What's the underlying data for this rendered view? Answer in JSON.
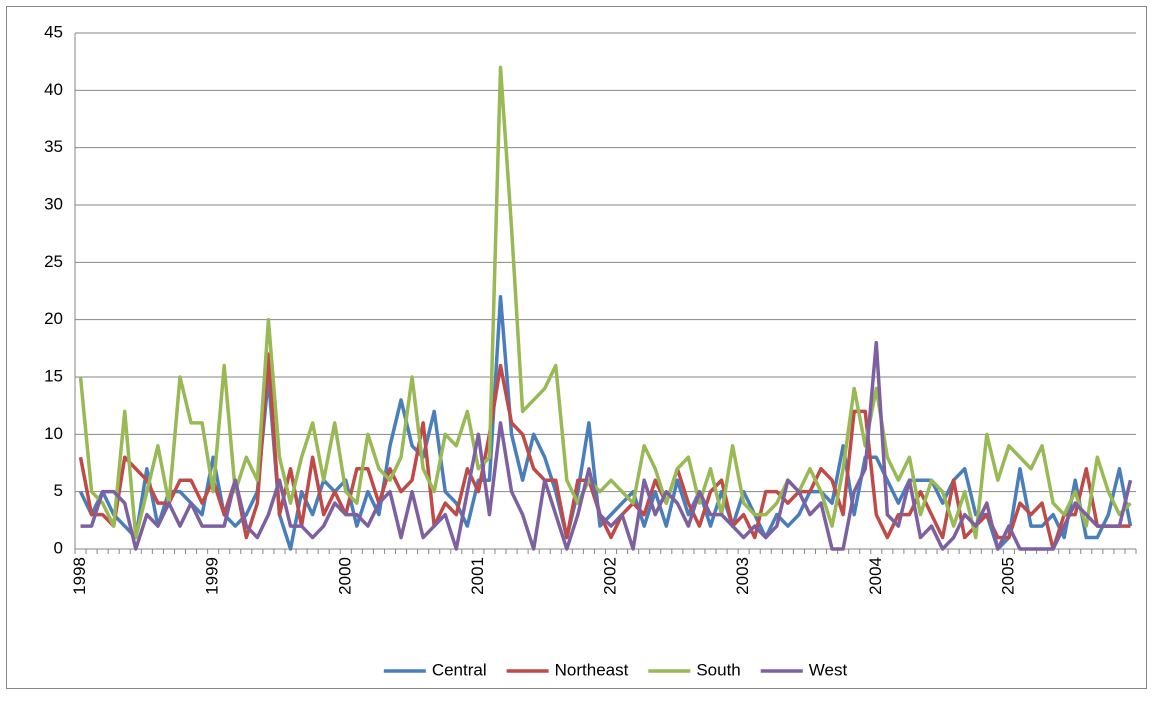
{
  "chart_data": {
    "type": "line",
    "categories": [
      "1998",
      null,
      null,
      null,
      null,
      null,
      null,
      null,
      null,
      null,
      null,
      null,
      "1999",
      null,
      null,
      null,
      null,
      null,
      null,
      null,
      null,
      null,
      null,
      null,
      "2000",
      null,
      null,
      null,
      null,
      null,
      null,
      null,
      null,
      null,
      null,
      null,
      "2001",
      null,
      null,
      null,
      null,
      null,
      null,
      null,
      null,
      null,
      null,
      null,
      "2002",
      null,
      null,
      null,
      null,
      null,
      null,
      null,
      null,
      null,
      null,
      null,
      "2003",
      null,
      null,
      null,
      null,
      null,
      null,
      null,
      null,
      null,
      null,
      null,
      "2004",
      null,
      null,
      null,
      null,
      null,
      null,
      null,
      null,
      null,
      null,
      null,
      "2005",
      null,
      null,
      null,
      null,
      null,
      null,
      null,
      null,
      null,
      null,
      null
    ],
    "series": [
      {
        "name": "Central",
        "color": "#4a7ebb",
        "values": [
          5,
          3,
          5,
          3,
          2,
          1,
          7,
          2,
          5,
          5,
          4,
          3,
          8,
          3,
          2,
          3,
          5,
          15,
          3,
          0,
          5,
          3,
          6,
          5,
          6,
          2,
          5,
          3,
          9,
          13,
          9,
          8,
          12,
          5,
          4,
          2,
          6,
          6,
          22,
          10,
          6,
          10,
          8,
          5,
          1,
          5,
          11,
          2,
          3,
          4,
          5,
          2,
          5,
          2,
          6,
          3,
          5,
          2,
          5,
          2,
          5,
          3,
          1,
          3,
          2,
          3,
          5,
          5,
          4,
          9,
          3,
          8,
          8,
          6,
          4,
          6,
          6,
          6,
          4,
          6,
          7,
          3,
          3,
          0,
          1,
          7,
          2,
          2,
          3,
          1,
          6,
          1,
          1,
          3,
          7,
          2
        ]
      },
      {
        "name": "Northeast",
        "color": "#be4b48",
        "values": [
          8,
          3,
          3,
          2,
          8,
          7,
          6,
          4,
          4,
          6,
          6,
          4,
          6,
          3,
          6,
          1,
          4,
          17,
          3,
          7,
          2,
          8,
          3,
          5,
          3,
          7,
          7,
          4,
          7,
          5,
          6,
          11,
          2,
          4,
          3,
          7,
          5,
          10,
          16,
          11,
          10,
          7,
          6,
          6,
          1,
          6,
          6,
          3,
          1,
          3,
          4,
          3,
          6,
          4,
          7,
          4,
          2,
          5,
          6,
          2,
          3,
          1,
          5,
          5,
          4,
          5,
          5,
          7,
          6,
          3,
          12,
          12,
          3,
          1,
          3,
          3,
          5,
          3,
          1,
          6,
          1,
          2,
          3,
          1,
          1,
          4,
          3,
          4,
          0,
          3,
          3,
          7,
          2,
          2,
          2,
          2
        ]
      },
      {
        "name": "South",
        "color": "#98b954",
        "values": [
          15,
          5,
          4,
          2,
          12,
          1,
          5,
          9,
          4,
          15,
          11,
          11,
          5,
          16,
          5,
          8,
          6,
          20,
          8,
          4,
          8,
          11,
          6,
          11,
          5,
          4,
          10,
          7,
          6,
          8,
          15,
          7,
          5,
          10,
          9,
          12,
          7,
          8,
          42,
          28,
          12,
          13,
          14,
          16,
          6,
          4,
          6,
          5,
          6,
          5,
          4,
          9,
          7,
          4,
          7,
          8,
          4,
          7,
          3,
          9,
          4,
          3,
          3,
          4,
          6,
          5,
          7,
          5,
          2,
          7,
          14,
          9,
          14,
          8,
          6,
          8,
          3,
          6,
          5,
          2,
          5,
          1,
          10,
          6,
          9,
          8,
          7,
          9,
          4,
          3,
          5,
          2,
          8,
          5,
          3,
          4
        ]
      },
      {
        "name": "West",
        "color": "#7d60a0",
        "values": [
          2,
          2,
          5,
          5,
          4,
          0,
          3,
          2,
          4,
          2,
          4,
          2,
          2,
          2,
          6,
          2,
          1,
          3,
          6,
          2,
          2,
          1,
          2,
          4,
          3,
          3,
          2,
          4,
          5,
          1,
          5,
          1,
          2,
          3,
          0,
          5,
          10,
          3,
          11,
          5,
          3,
          0,
          6,
          3,
          0,
          3,
          7,
          3,
          2,
          3,
          0,
          6,
          3,
          5,
          4,
          2,
          5,
          3,
          3,
          2,
          1,
          2,
          1,
          2,
          6,
          5,
          3,
          4,
          0,
          0,
          5,
          7,
          18,
          3,
          2,
          6,
          1,
          2,
          0,
          1,
          3,
          2,
          4,
          0,
          2,
          0,
          0,
          0,
          0,
          2,
          4,
          3,
          2,
          2,
          2,
          6
        ]
      }
    ],
    "ylim": [
      0,
      45
    ],
    "yticks": [
      0,
      5,
      10,
      15,
      20,
      25,
      30,
      35,
      40,
      45
    ],
    "grid": true,
    "legend": "bottom"
  }
}
